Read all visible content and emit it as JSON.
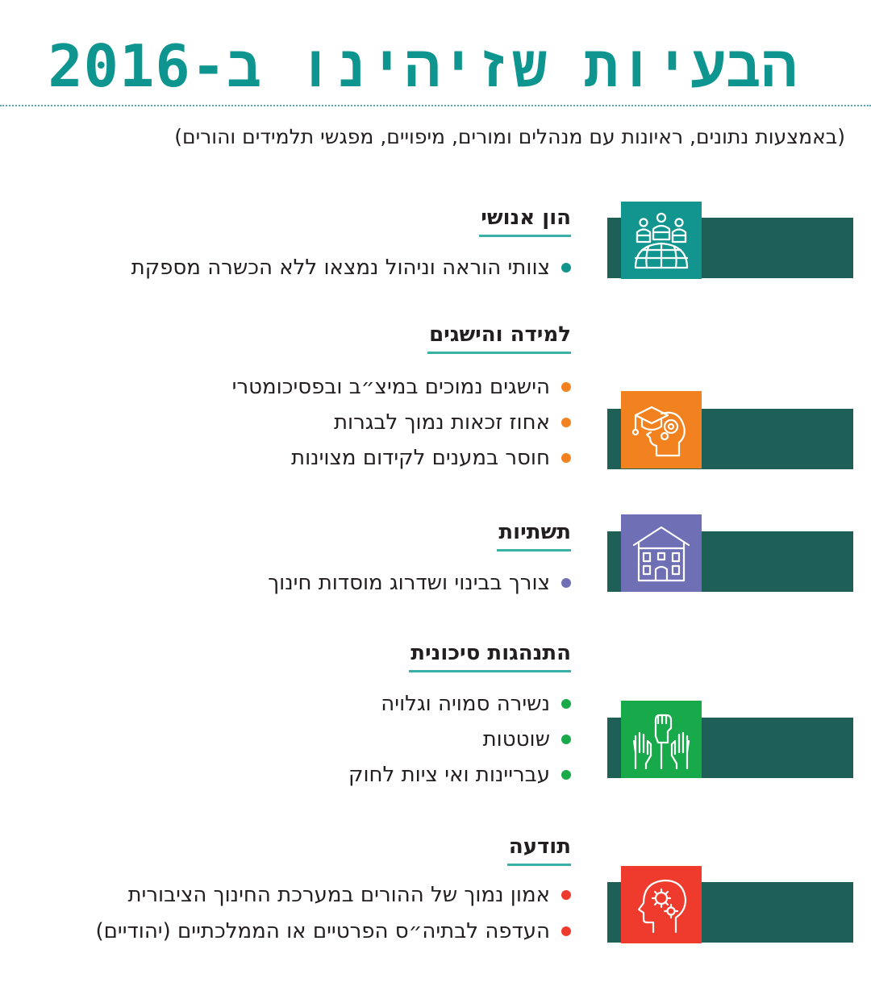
{
  "header": {
    "title": "הבעיות שזיהינו ב-2016",
    "subtitle": "(באמצעות נתונים, ראיונות עם מנהלים ומורים, מיפויים, מפגשי תלמידים והורים)"
  },
  "colors": {
    "title": "#0e958f",
    "bar": "#1e5f57",
    "underline": "#39b1a8"
  },
  "sections": [
    {
      "heading": "הון אנושי",
      "icon": "podium-speakers-icon",
      "color": "#13958f",
      "items": [
        "צוותי הוראה וניהול נמצאו ללא הכשרה מספקת"
      ]
    },
    {
      "heading": "למידה והישגים",
      "icon": "graduate-head-icon",
      "color": "#f2821f",
      "items": [
        "הישגים נמוכים במיצ״ב ובפסיכומטרי",
        "אחוז זכאות נמוך לבגרות",
        "חוסר במענים לקידום מצוינות"
      ]
    },
    {
      "heading": "תשתיות",
      "icon": "school-building-icon",
      "color": "#6f6fb5",
      "items": [
        "צורך בבינוי ושדרוג מוסדות חינוך"
      ]
    },
    {
      "heading": "התנהגות סיכונית",
      "icon": "raised-hands-fist-icon",
      "color": "#17a94a",
      "items": [
        "נשירה סמויה וגלויה",
        "שוטטות",
        "עבריינות ואי ציות לחוק"
      ]
    },
    {
      "heading": "תודעה",
      "icon": "head-gears-icon",
      "color": "#ee3b2d",
      "items": [
        "אמון נמוך של ההורים במערכת החינוך הציבורית",
        "העדפה לבתיה״ס הפרטיים או הממלכתיים (יהודיים)"
      ]
    }
  ]
}
